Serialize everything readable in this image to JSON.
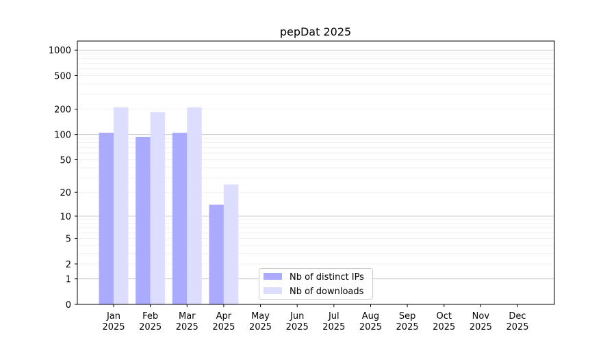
{
  "chart_data": {
    "type": "bar",
    "title": "pepDat 2025",
    "xlabel": "",
    "ylabel": "",
    "yscale": "log(1+x)",
    "ylim": [
      0,
      1300
    ],
    "yticks": [
      0,
      1,
      2,
      5,
      10,
      20,
      50,
      100,
      200,
      500,
      1000
    ],
    "grid": true,
    "legend_position": "lower-center",
    "categories": [
      "Jan\n2025",
      "Feb\n2025",
      "Mar\n2025",
      "Apr\n2025",
      "May\n2025",
      "Jun\n2025",
      "Jul\n2025",
      "Aug\n2025",
      "Sep\n2025",
      "Oct\n2025",
      "Nov\n2025",
      "Dec\n2025"
    ],
    "series": [
      {
        "name": "Nb of distinct IPs",
        "color": "#aaaaff",
        "values": [
          105,
          94,
          105,
          14,
          0,
          0,
          0,
          0,
          0,
          0,
          0,
          0
        ]
      },
      {
        "name": "Nb of downloads",
        "color": "#ddddff",
        "values": [
          210,
          184,
          210,
          25,
          0,
          0,
          0,
          0,
          0,
          0,
          0,
          0
        ]
      }
    ]
  }
}
